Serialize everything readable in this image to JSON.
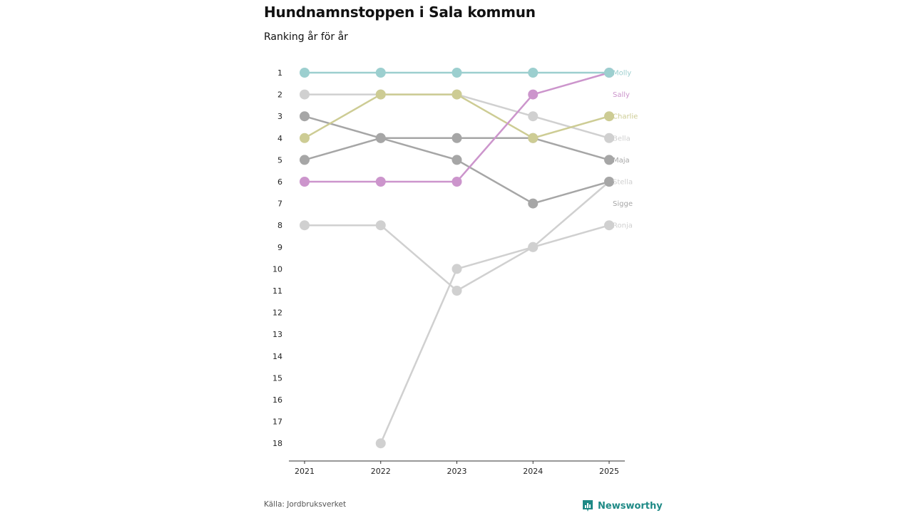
{
  "chart_data": {
    "type": "line",
    "title": "Hundnamnstoppen i Sala kommun",
    "subtitle": "Ranking år för år",
    "x": [
      "2021",
      "2022",
      "2023",
      "2024",
      "2025"
    ],
    "y_ticks": [
      "1",
      "2",
      "3",
      "4",
      "5",
      "6",
      "7",
      "8",
      "9",
      "10",
      "11",
      "12",
      "13",
      "14",
      "15",
      "16",
      "17",
      "18"
    ],
    "ylim": [
      1,
      18
    ],
    "y_reversed": true,
    "series": [
      {
        "name": "Ronja",
        "values": [
          null,
          18,
          10,
          9,
          8
        ],
        "color": "#d0d0d0"
      },
      {
        "name": "Stella",
        "values": [
          8,
          8,
          11,
          9,
          6
        ],
        "color": "#d0d0d0"
      },
      {
        "name": "Bella",
        "values": [
          2,
          2,
          2,
          3,
          4
        ],
        "color": "#d0d0d0"
      },
      {
        "name": "Sigge",
        "values": [
          3,
          4,
          5,
          7,
          6
        ],
        "color": "#a6a6a6"
      },
      {
        "name": "Maja",
        "values": [
          5,
          4,
          4,
          4,
          5
        ],
        "color": "#a6a6a6"
      },
      {
        "name": "Charlie",
        "values": [
          4,
          2,
          2,
          4,
          3
        ],
        "color": "#cdcc94"
      },
      {
        "name": "Sally",
        "values": [
          6,
          6,
          6,
          2,
          1
        ],
        "color": "#cc95cc"
      },
      {
        "name": "Molly",
        "values": [
          1,
          1,
          1,
          1,
          1
        ],
        "color": "#9ccfcf"
      }
    ],
    "end_labels": [
      {
        "name": "Molly",
        "rank": 1,
        "color": "#9ccfcf"
      },
      {
        "name": "Sally",
        "rank": 2,
        "color": "#cc95cc"
      },
      {
        "name": "Charlie",
        "rank": 3,
        "color": "#cdcc94"
      },
      {
        "name": "Bella",
        "rank": 4,
        "color": "#d0d0d0"
      },
      {
        "name": "Maja",
        "rank": 5,
        "color": "#a6a6a6"
      },
      {
        "name": "Stella",
        "rank": 6,
        "color": "#d0d0d0"
      },
      {
        "name": "Sigge",
        "rank": 7,
        "color": "#a6a6a6"
      },
      {
        "name": "Ronja",
        "rank": 8,
        "color": "#d0d0d0"
      }
    ]
  },
  "footer": {
    "source": "Källa: Jordbruksverket",
    "brand": "Newsworthy",
    "brand_color": "#1f8a86"
  }
}
